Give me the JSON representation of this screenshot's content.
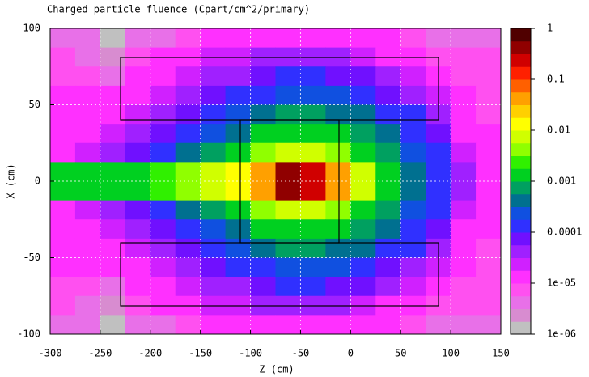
{
  "chart_data": {
    "type": "heatmap",
    "title": "Charged particle fluence  (Cpart/cm^2/primary)",
    "x_label": "Z (cm)",
    "y_label": "X (cm)",
    "xlim": [
      -300,
      150
    ],
    "ylim": [
      -100,
      100
    ],
    "xticks": [
      -300,
      -250,
      -200,
      -150,
      -100,
      -50,
      0,
      50,
      100,
      150
    ],
    "yticks": [
      -100,
      -50,
      0,
      50,
      100
    ],
    "grid": true,
    "xbins": [
      -300,
      -275,
      -250,
      -225,
      -200,
      -175,
      -150,
      -125,
      -100,
      -75,
      -50,
      -25,
      0,
      25,
      50,
      75,
      100,
      125,
      150
    ],
    "ybins": [
      100,
      87.5,
      75,
      62.5,
      50,
      37.5,
      25,
      12.5,
      0,
      -12.5,
      -25,
      -37.5,
      -50,
      -62.5,
      -75,
      -87.5,
      -100
    ],
    "z": [
      [
        5e-06,
        3.2e-06,
        1.6e-06,
        3.2e-06,
        5e-06,
        8e-06,
        1e-05,
        1.3e-05,
        1.6e-05,
        1.6e-05,
        1.6e-05,
        1.6e-05,
        1.3e-05,
        1e-05,
        8e-06,
        5e-06,
        5e-06,
        5e-06
      ],
      [
        6.3e-06,
        5e-06,
        2.5e-06,
        6.3e-06,
        1e-05,
        1.3e-05,
        2e-05,
        2.5e-05,
        3.2e-05,
        4e-05,
        4e-05,
        3.2e-05,
        2.5e-05,
        1.6e-05,
        1e-05,
        8e-06,
        6.3e-06,
        6.3e-06
      ],
      [
        8e-06,
        8e-06,
        5e-06,
        1e-05,
        1.6e-05,
        2.5e-05,
        4e-05,
        5e-05,
        8e-05,
        0.0001,
        0.0001,
        8e-05,
        6.3e-05,
        4e-05,
        2.5e-05,
        1.3e-05,
        8e-06,
        6.3e-06
      ],
      [
        1e-05,
        1e-05,
        1e-05,
        1.6e-05,
        2.5e-05,
        4e-05,
        6.3e-05,
        0.0001,
        0.00016,
        0.00025,
        0.00025,
        0.0002,
        0.00013,
        8e-05,
        5e-05,
        2.5e-05,
        1e-05,
        8e-06
      ],
      [
        1e-05,
        1.3e-05,
        1.6e-05,
        2.5e-05,
        4e-05,
        6.3e-05,
        0.00013,
        0.0002,
        0.0004,
        0.00063,
        0.00063,
        0.0005,
        0.00032,
        0.00016,
        0.0001,
        5e-05,
        1.3e-05,
        8e-06
      ],
      [
        1.3e-05,
        1.6e-05,
        2.5e-05,
        4e-05,
        6.3e-05,
        0.00013,
        0.00025,
        0.0005,
        0.001,
        0.0016,
        0.0016,
        0.0013,
        0.00063,
        0.00032,
        0.00016,
        6.3e-05,
        1.6e-05,
        1e-05
      ],
      [
        1.6e-05,
        2.5e-05,
        4e-05,
        8e-05,
        0.00016,
        0.00032,
        0.00063,
        0.0016,
        0.0032,
        0.0063,
        0.0063,
        0.004,
        0.0016,
        0.00063,
        0.00025,
        0.0001,
        2.5e-05,
        1e-05
      ],
      [
        0.001,
        0.001,
        0.001,
        0.0016,
        0.0025,
        0.004,
        0.008,
        0.016,
        0.032,
        0.4,
        0.25,
        0.05,
        0.0063,
        0.0016,
        0.0005,
        0.00016,
        5e-05,
        1.3e-05
      ],
      [
        0.001,
        0.001,
        0.001,
        0.0016,
        0.0025,
        0.004,
        0.008,
        0.016,
        0.032,
        0.4,
        0.25,
        0.05,
        0.0063,
        0.0016,
        0.0005,
        0.00016,
        5e-05,
        1.3e-05
      ],
      [
        1.6e-05,
        2.5e-05,
        4e-05,
        8e-05,
        0.00016,
        0.00032,
        0.00063,
        0.0016,
        0.0032,
        0.0063,
        0.0063,
        0.004,
        0.0016,
        0.00063,
        0.00025,
        0.0001,
        2.5e-05,
        1e-05
      ],
      [
        1.3e-05,
        1.6e-05,
        2.5e-05,
        4e-05,
        6.3e-05,
        0.00013,
        0.00025,
        0.0005,
        0.001,
        0.0016,
        0.0016,
        0.0013,
        0.00063,
        0.00032,
        0.00016,
        6.3e-05,
        1.6e-05,
        1e-05
      ],
      [
        1e-05,
        1.3e-05,
        1.6e-05,
        2.5e-05,
        4e-05,
        6.3e-05,
        0.00013,
        0.0002,
        0.0004,
        0.00063,
        0.00063,
        0.0005,
        0.00032,
        0.00016,
        0.0001,
        5e-05,
        1.3e-05,
        8e-06
      ],
      [
        1e-05,
        1e-05,
        1e-05,
        1.6e-05,
        2.5e-05,
        4e-05,
        6.3e-05,
        0.0001,
        0.00016,
        0.00025,
        0.00025,
        0.0002,
        0.00013,
        8e-05,
        5e-05,
        2.5e-05,
        1e-05,
        8e-06
      ],
      [
        8e-06,
        8e-06,
        5e-06,
        1e-05,
        1.6e-05,
        2.5e-05,
        4e-05,
        5e-05,
        8e-05,
        0.0001,
        0.0001,
        8e-05,
        6.3e-05,
        4e-05,
        2.5e-05,
        1.3e-05,
        8e-06,
        6.3e-06
      ],
      [
        6.3e-06,
        5e-06,
        2.5e-06,
        6.3e-06,
        1e-05,
        1.3e-05,
        2e-05,
        2.5e-05,
        3.2e-05,
        4e-05,
        4e-05,
        3.2e-05,
        2.5e-05,
        1.6e-05,
        1e-05,
        8e-06,
        6.3e-06,
        6.3e-06
      ],
      [
        5e-06,
        3.2e-06,
        1.6e-06,
        3.2e-06,
        5e-06,
        8e-06,
        1e-05,
        1.3e-05,
        1.6e-05,
        1.6e-05,
        1.6e-05,
        1.6e-05,
        1.3e-05,
        1e-05,
        8e-06,
        5e-06,
        5e-06,
        5e-06
      ]
    ],
    "zlim": [
      1e-06,
      1
    ],
    "zlog": true,
    "zticks": [
      1,
      0.1,
      0.01,
      0.001,
      0.0001,
      {
        "value": 1e-05,
        "label": "1e-05"
      },
      {
        "value": 1e-06,
        "label": "1e-06"
      }
    ],
    "colors": [
      "#c0c0c0",
      "#d88cd0",
      "#e870e8",
      "#ff50f0",
      "#ff30ff",
      "#d020ff",
      "#a020ff",
      "#7010ff",
      "#3030ff",
      "#1050e0",
      "#007090",
      "#00a060",
      "#00d020",
      "#30f000",
      "#90ff00",
      "#d0ff00",
      "#ffff00",
      "#ffd000",
      "#ffa000",
      "#ff6000",
      "#ff2000",
      "#d00000",
      "#900000",
      "#500000"
    ]
  }
}
